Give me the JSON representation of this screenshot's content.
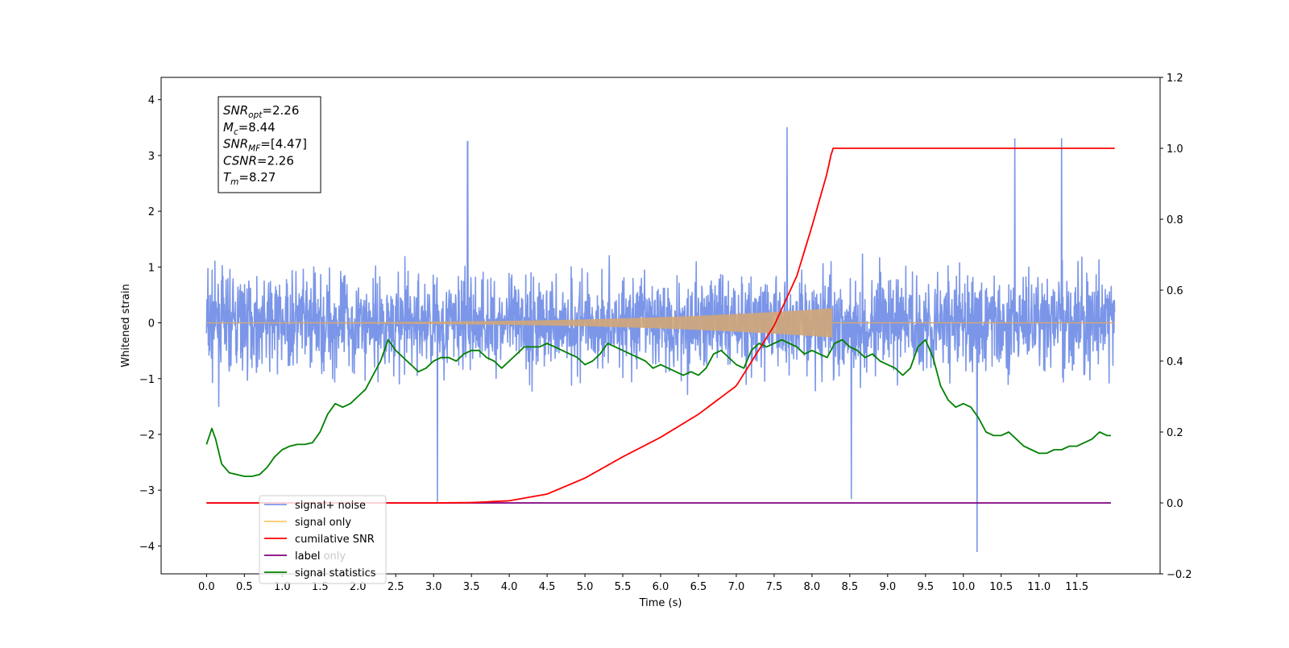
{
  "chart_data": {
    "type": "line",
    "x_label": "Time (s)",
    "y_label": "Whitened strain",
    "x_ticks": [
      0.0,
      0.5,
      1.0,
      1.5,
      2.0,
      2.5,
      3.0,
      3.5,
      4.0,
      4.5,
      5.0,
      5.5,
      6.0,
      6.5,
      7.0,
      7.5,
      8.0,
      8.5,
      9.0,
      9.5,
      10.0,
      10.5,
      11.0,
      11.5
    ],
    "x_tick_labels": [
      "0.0",
      "0.5",
      "1.0",
      "1.5",
      "2.0",
      "2.5",
      "3.0",
      "3.5",
      "4.0",
      "4.5",
      "5.0",
      "5.5",
      "6.0",
      "6.5",
      "7.0",
      "7.5",
      "8.0",
      "8.5",
      "9.0",
      "9.5",
      "10.0",
      "10.5",
      "11.0",
      "11.5"
    ],
    "xlim": [
      -0.6,
      12.6
    ],
    "y_left": {
      "ylim": [
        -4.5,
        4.4
      ],
      "ticks": [
        -4,
        -3,
        -2,
        -1,
        0,
        1,
        2,
        3,
        4
      ],
      "tick_labels": [
        "−4",
        "−3",
        "−2",
        "−1",
        "0",
        "1",
        "2",
        "3",
        "4"
      ]
    },
    "y_right": {
      "ylim": [
        -0.2,
        1.2
      ],
      "ticks": [
        -0.2,
        0.0,
        0.2,
        0.4,
        0.6,
        0.8,
        1.0,
        1.2
      ],
      "tick_labels": [
        "−0.2",
        "0.0",
        "0.2",
        "0.4",
        "0.6",
        "0.8",
        "1.0",
        "1.2"
      ]
    },
    "annotation": {
      "lines": [
        {
          "base": "SNR",
          "sub": "opt",
          "value": "=2.26"
        },
        {
          "base": "M",
          "sub": "c",
          "value": "=8.44"
        },
        {
          "base": "SNR",
          "sub": "MF",
          "value": "=[4.47]"
        },
        {
          "base": "CSNR",
          "sub": "",
          "value": "=2.26"
        },
        {
          "base": "T",
          "sub": "m",
          "value": "=8.27"
        }
      ]
    },
    "legend": {
      "position": "lower-left",
      "entries": [
        {
          "label": "signal+ noise",
          "color": "#7b96e8"
        },
        {
          "label": "signal only",
          "color": "#ffc966"
        },
        {
          "label": "cumilative SNR",
          "color": "#ff0000"
        },
        {
          "label": "label",
          "color": "#800080"
        },
        {
          "label": "signal statistics",
          "color": "#008000"
        }
      ],
      "hidden_label": "label only"
    },
    "series": [
      {
        "name": "signal+ noise",
        "axis": "left",
        "color": "#7b96e8",
        "x_range": [
          0.0,
          12.0
        ],
        "envelope": {
          "typical_peak": 2.0,
          "max": 3.5,
          "min": -4.1
        },
        "notable_peaks": [
          [
            7.67,
            3.5
          ],
          [
            10.68,
            3.3
          ],
          [
            11.3,
            3.3
          ],
          [
            3.45,
            3.25
          ],
          [
            10.18,
            -4.1
          ],
          [
            8.52,
            -3.15
          ],
          [
            3.05,
            -3.2
          ]
        ]
      },
      {
        "name": "signal only",
        "axis": "left",
        "color": "#d2a679",
        "x_range": [
          0.0,
          12.0
        ],
        "chirp_end": 8.27,
        "final_amplitude": 0.25
      },
      {
        "name": "cumilative SNR",
        "axis": "right",
        "color": "#ff0000",
        "x": [
          0.0,
          3.0,
          3.5,
          4.0,
          4.5,
          5.0,
          5.5,
          6.0,
          6.5,
          7.0,
          7.5,
          7.8,
          8.0,
          8.2,
          8.27,
          12.0
        ],
        "values": [
          0.0,
          0.0,
          0.001,
          0.006,
          0.025,
          0.07,
          0.13,
          0.185,
          0.25,
          0.33,
          0.5,
          0.64,
          0.78,
          0.93,
          1.0,
          1.0
        ]
      },
      {
        "name": "label",
        "axis": "right",
        "color": "#800080",
        "x": [
          0.0,
          11.95
        ],
        "values": [
          0.0,
          0.0
        ]
      },
      {
        "name": "signal statistics",
        "axis": "right",
        "color": "#008000",
        "x": [
          0.0,
          0.07,
          0.12,
          0.2,
          0.3,
          0.4,
          0.5,
          0.6,
          0.7,
          0.8,
          0.9,
          1.0,
          1.1,
          1.2,
          1.3,
          1.4,
          1.5,
          1.6,
          1.7,
          1.8,
          1.9,
          2.0,
          2.1,
          2.2,
          2.3,
          2.4,
          2.5,
          2.6,
          2.7,
          2.8,
          2.9,
          3.0,
          3.1,
          3.2,
          3.3,
          3.4,
          3.5,
          3.6,
          3.7,
          3.8,
          3.9,
          4.0,
          4.1,
          4.2,
          4.3,
          4.4,
          4.5,
          4.6,
          4.7,
          4.8,
          4.9,
          5.0,
          5.1,
          5.2,
          5.3,
          5.4,
          5.5,
          5.6,
          5.7,
          5.8,
          5.9,
          6.0,
          6.1,
          6.2,
          6.3,
          6.4,
          6.5,
          6.6,
          6.7,
          6.8,
          6.9,
          7.0,
          7.1,
          7.2,
          7.3,
          7.4,
          7.5,
          7.6,
          7.7,
          7.8,
          7.9,
          8.0,
          8.1,
          8.2,
          8.3,
          8.4,
          8.5,
          8.6,
          8.7,
          8.8,
          8.9,
          9.0,
          9.1,
          9.2,
          9.3,
          9.4,
          9.5,
          9.6,
          9.7,
          9.8,
          9.9,
          10.0,
          10.1,
          10.2,
          10.3,
          10.4,
          10.5,
          10.6,
          10.7,
          10.8,
          10.9,
          11.0,
          11.1,
          11.2,
          11.3,
          11.4,
          11.5,
          11.6,
          11.7,
          11.8,
          11.9,
          11.95
        ],
        "values": [
          0.165,
          0.21,
          0.18,
          0.11,
          0.085,
          0.08,
          0.075,
          0.075,
          0.08,
          0.1,
          0.13,
          0.15,
          0.16,
          0.165,
          0.165,
          0.17,
          0.2,
          0.25,
          0.28,
          0.27,
          0.28,
          0.3,
          0.32,
          0.36,
          0.4,
          0.46,
          0.43,
          0.41,
          0.39,
          0.37,
          0.38,
          0.4,
          0.41,
          0.41,
          0.4,
          0.42,
          0.43,
          0.43,
          0.41,
          0.4,
          0.38,
          0.4,
          0.42,
          0.44,
          0.44,
          0.44,
          0.45,
          0.44,
          0.43,
          0.42,
          0.41,
          0.39,
          0.4,
          0.42,
          0.45,
          0.44,
          0.43,
          0.42,
          0.41,
          0.4,
          0.38,
          0.39,
          0.38,
          0.37,
          0.36,
          0.37,
          0.36,
          0.38,
          0.42,
          0.43,
          0.41,
          0.39,
          0.38,
          0.43,
          0.45,
          0.44,
          0.45,
          0.46,
          0.45,
          0.44,
          0.42,
          0.43,
          0.42,
          0.41,
          0.45,
          0.46,
          0.44,
          0.43,
          0.41,
          0.42,
          0.4,
          0.39,
          0.38,
          0.36,
          0.38,
          0.44,
          0.46,
          0.41,
          0.33,
          0.29,
          0.27,
          0.28,
          0.27,
          0.24,
          0.2,
          0.19,
          0.19,
          0.2,
          0.18,
          0.16,
          0.15,
          0.14,
          0.14,
          0.15,
          0.15,
          0.16,
          0.16,
          0.17,
          0.18,
          0.2,
          0.19,
          0.19
        ]
      }
    ]
  }
}
